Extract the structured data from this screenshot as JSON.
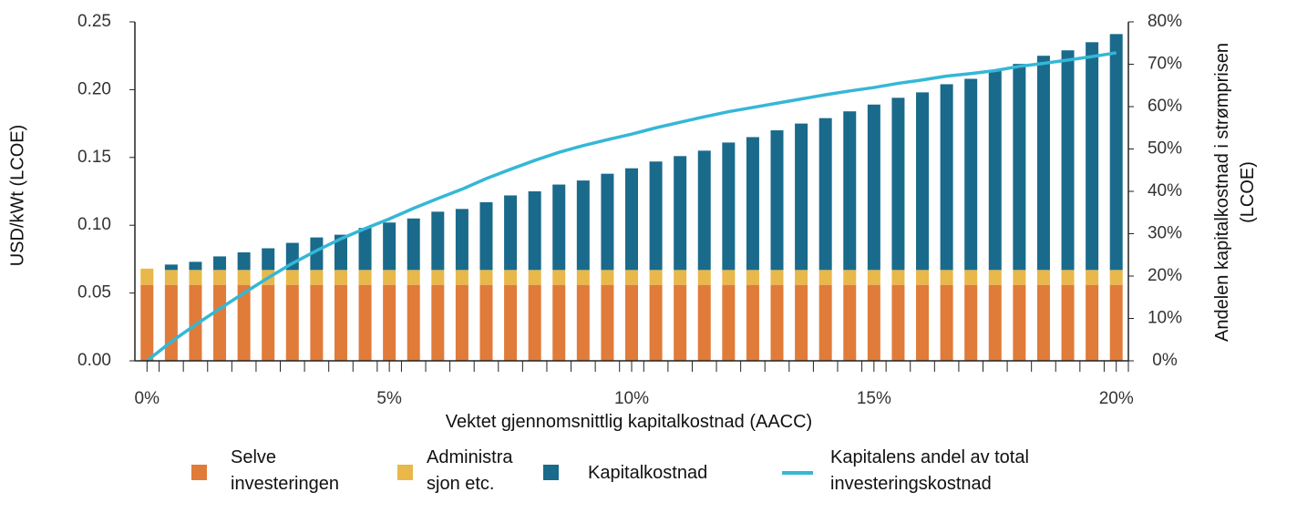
{
  "chart_data": {
    "type": "bar",
    "stacked": true,
    "x": [
      0,
      0.5,
      1,
      1.5,
      2,
      2.5,
      3,
      3.5,
      4,
      4.5,
      5,
      5.5,
      6,
      6.5,
      7,
      7.5,
      8,
      8.5,
      9,
      9.5,
      10,
      10.5,
      11,
      11.5,
      12,
      12.5,
      13,
      13.5,
      14,
      14.5,
      15,
      15.5,
      16,
      16.5,
      17,
      17.5,
      18,
      18.5,
      19,
      19.5,
      20
    ],
    "xlim": [
      -0.25,
      20.25
    ],
    "xticks": [
      {
        "value": 0,
        "label": "0%"
      },
      {
        "value": 5,
        "label": "5%"
      },
      {
        "value": 10,
        "label": "10%"
      },
      {
        "value": 15,
        "label": "15%"
      },
      {
        "value": 20,
        "label": "20%"
      }
    ],
    "ylim": [
      0,
      0.25
    ],
    "yticks": [
      {
        "value": 0,
        "label": "0.00"
      },
      0.05,
      {
        "value": 0.1,
        "label": "0.10"
      },
      0.15,
      {
        "value": 0.2,
        "label": "0.20"
      },
      0.25
    ],
    "y2lim": [
      0,
      80
    ],
    "y2ticks": [
      {
        "value": 0,
        "label": "0%"
      },
      {
        "value": 10,
        "label": "10%"
      },
      {
        "value": 20,
        "label": "20%"
      },
      {
        "value": 30,
        "label": "30%"
      },
      {
        "value": 40,
        "label": "40%"
      },
      {
        "value": 50,
        "label": "50%"
      },
      {
        "value": 60,
        "label": "60%"
      },
      {
        "value": 70,
        "label": "70%"
      },
      {
        "value": 80,
        "label": "80%"
      }
    ],
    "xlabel": "Vektet gjennomsnittlig kapitalkostnad (AACC)",
    "ylabel": "USD/kWt (LCOE)",
    "y2label": "Andelen kapitalkostnad i strømprisen (LCOE)",
    "series": [
      {
        "name": "Selve investeringen",
        "color": "#e07b39",
        "values": [
          0.056,
          0.056,
          0.056,
          0.056,
          0.056,
          0.056,
          0.056,
          0.056,
          0.056,
          0.056,
          0.056,
          0.056,
          0.056,
          0.056,
          0.056,
          0.056,
          0.056,
          0.056,
          0.056,
          0.056,
          0.056,
          0.056,
          0.056,
          0.056,
          0.056,
          0.056,
          0.056,
          0.056,
          0.056,
          0.056,
          0.056,
          0.056,
          0.056,
          0.056,
          0.056,
          0.056,
          0.056,
          0.056,
          0.056,
          0.056,
          0.056
        ]
      },
      {
        "name": "Administra sjon etc.",
        "color": "#e8b84a",
        "values": [
          0.012,
          0.011,
          0.011,
          0.011,
          0.011,
          0.011,
          0.011,
          0.011,
          0.011,
          0.011,
          0.011,
          0.011,
          0.011,
          0.011,
          0.011,
          0.011,
          0.011,
          0.011,
          0.011,
          0.011,
          0.011,
          0.011,
          0.011,
          0.011,
          0.011,
          0.011,
          0.011,
          0.011,
          0.011,
          0.011,
          0.011,
          0.011,
          0.011,
          0.011,
          0.011,
          0.011,
          0.011,
          0.011,
          0.011,
          0.011,
          0.011
        ]
      },
      {
        "name": "Kapitalkostnad",
        "color": "#1a6a8c",
        "values": [
          0,
          0.004,
          0.006,
          0.01,
          0.013,
          0.016,
          0.02,
          0.024,
          0.026,
          0.031,
          0.035,
          0.038,
          0.043,
          0.045,
          0.05,
          0.055,
          0.058,
          0.063,
          0.066,
          0.071,
          0.075,
          0.08,
          0.084,
          0.088,
          0.094,
          0.098,
          0.103,
          0.108,
          0.112,
          0.117,
          0.122,
          0.127,
          0.131,
          0.137,
          0.141,
          0.147,
          0.152,
          0.158,
          0.162,
          0.168,
          0.174
        ]
      },
      {
        "name": "Kapitalens andel av total investeringskostnad",
        "color": "#35b7d6",
        "type": "line",
        "axis": "y2",
        "values": [
          0,
          4.5,
          8.5,
          12.3,
          16,
          19.6,
          23,
          26,
          28.8,
          31.2,
          33.5,
          36,
          38.3,
          40.5,
          43,
          45.2,
          47.3,
          49.2,
          50.8,
          52.2,
          53.5,
          55,
          56.3,
          57.6,
          58.8,
          59.8,
          60.8,
          61.8,
          62.8,
          63.7,
          64.5,
          65.5,
          66.3,
          67.2,
          67.8,
          68.5,
          69.5,
          70.2,
          71,
          71.8,
          72.7
        ]
      }
    ]
  }
}
